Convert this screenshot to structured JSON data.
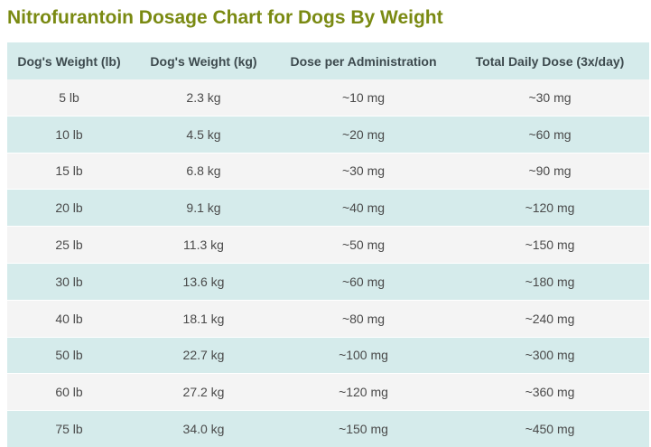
{
  "title": "Nitrofurantoin Dosage Chart for Dogs By Weight",
  "colors": {
    "title": "#7a8a12",
    "header_bg": "#d5ebeb",
    "row_odd_bg": "#f4f4f4",
    "row_even_bg": "#d5ebeb"
  },
  "table": {
    "headers": [
      "Dog's Weight (lb)",
      "Dog's Weight (kg)",
      "Dose per Administration",
      "Total Daily Dose (3x/day)"
    ],
    "rows": [
      [
        "5 lb",
        "2.3 kg",
        "~10 mg",
        "~30 mg"
      ],
      [
        "10 lb",
        "4.5 kg",
        "~20 mg",
        "~60 mg"
      ],
      [
        "15 lb",
        "6.8 kg",
        "~30 mg",
        "~90 mg"
      ],
      [
        "20 lb",
        "9.1 kg",
        "~40 mg",
        "~120 mg"
      ],
      [
        "25 lb",
        "11.3 kg",
        "~50 mg",
        "~150 mg"
      ],
      [
        "30 lb",
        "13.6 kg",
        "~60 mg",
        "~180 mg"
      ],
      [
        "40 lb",
        "18.1 kg",
        "~80 mg",
        "~240 mg"
      ],
      [
        "50 lb",
        "22.7 kg",
        "~100 mg",
        "~300 mg"
      ],
      [
        "60 lb",
        "27.2 kg",
        "~120 mg",
        "~360 mg"
      ],
      [
        "75 lb",
        "34.0 kg",
        "~150 mg",
        "~450 mg"
      ]
    ]
  }
}
